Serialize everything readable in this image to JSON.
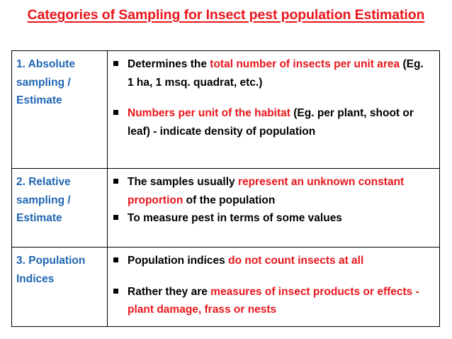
{
  "title": "Categories of Sampling for Insect pest population Estimation",
  "colors": {
    "title": "#e8161c",
    "category": "#1f66b3",
    "highlight": "#e8161c",
    "text": "#000000"
  },
  "rows": [
    {
      "category": "1. Absolute sampling / Estimate",
      "bullets": [
        {
          "t1": "Determines the ",
          "h1": "total number of insects per unit area",
          "t2": " (Eg. 1 ha, 1 msq. quadrat, etc.)"
        },
        {
          "h1": "Numbers per unit of the habitat",
          "t2": " (Eg. per plant, shoot or leaf) - indicate density of population"
        }
      ]
    },
    {
      "category": "2. Relative sampling / Estimate",
      "bullets": [
        {
          "t1": "The samples usually ",
          "h1": "represent an unknown constant proportion",
          "t2": " of the population"
        },
        {
          "t1": "To measure pest in terms of some values"
        }
      ]
    },
    {
      "category": "3. Population Indices",
      "bullets": [
        {
          "t1": "Population indices ",
          "h1": "do not count insects at all"
        },
        {
          "t1": "Rather they are ",
          "h1": "measures of insect products or effects - plant damage, frass or nests"
        }
      ]
    }
  ]
}
